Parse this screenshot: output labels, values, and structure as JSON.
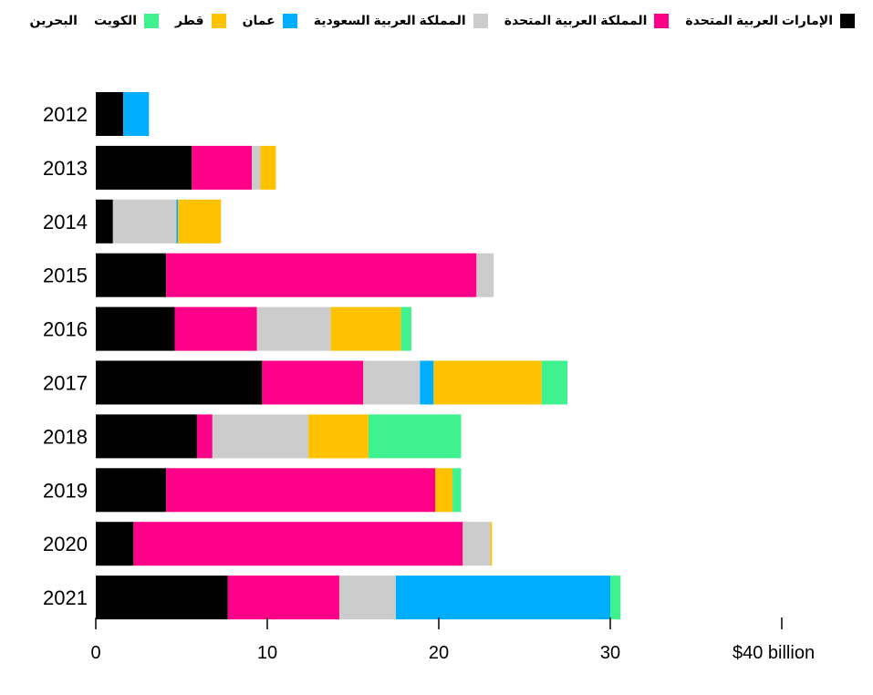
{
  "chart_data": {
    "type": "bar",
    "orientation": "horizontal",
    "stacked": true,
    "categories": [
      "2012",
      "2013",
      "2014",
      "2015",
      "2016",
      "2017",
      "2018",
      "2019",
      "2020",
      "2021"
    ],
    "series": [
      {
        "name": "الإمارات العربية المتحدة",
        "color": "#000000",
        "values": [
          1.6,
          5.6,
          1.0,
          4.1,
          4.6,
          9.7,
          5.9,
          4.1,
          2.2,
          7.7
        ]
      },
      {
        "name": "المملكة العربية المتحدة",
        "color": "#ff0088",
        "values": [
          0,
          3.5,
          0,
          18.1,
          4.8,
          5.9,
          0.9,
          15.7,
          19.2,
          6.5
        ]
      },
      {
        "name": "المملكة العربية السعودية",
        "color": "#cccccc",
        "values": [
          0,
          0.5,
          3.7,
          1.0,
          4.3,
          3.3,
          5.6,
          0,
          1.6,
          3.3
        ]
      },
      {
        "name": "عمان",
        "color": "#00aeff",
        "values": [
          1.5,
          0,
          0.1,
          0,
          0,
          0.8,
          0,
          0,
          0,
          12.5
        ]
      },
      {
        "name": "قطر",
        "color": "#ffc200",
        "values": [
          0,
          0.9,
          2.5,
          0,
          4.1,
          6.3,
          3.5,
          1.0,
          0.1,
          0
        ]
      },
      {
        "name": "الكويت",
        "color": "#40f28f",
        "values": [
          0,
          0,
          0,
          0,
          0.6,
          1.5,
          5.4,
          0.5,
          0,
          0.6
        ]
      }
    ],
    "legend_order": [
      0,
      1,
      2,
      3,
      4,
      5
    ],
    "xlim": [
      0,
      40
    ],
    "xticks": [
      {
        "value": 0,
        "label": "0"
      },
      {
        "value": 10,
        "label": "10"
      },
      {
        "value": 20,
        "label": "20"
      },
      {
        "value": 30,
        "label": "30"
      },
      {
        "value": 40,
        "label": "$40 billion"
      }
    ],
    "legend_placement": "top-right",
    "grid": false
  },
  "legend_labels": {
    "uae": "الإمارات العربية المتحدة",
    "uk": "المملكة العربية المتحدة",
    "saudi": "المملكة العربية السعودية",
    "oman": "عمان",
    "qatar": "قطر",
    "kuwait": "الكويت",
    "bahrain": "البحرين"
  }
}
